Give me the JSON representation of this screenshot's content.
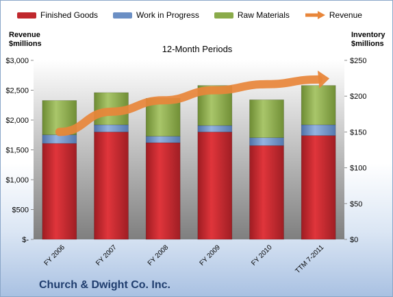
{
  "chart_data": {
    "type": "bar",
    "subtitle": "12-Month Periods",
    "company": "Church & Dwight Co. Inc.",
    "left_axis_label": "Revenue\n$millions",
    "right_axis_label": "Inventory\n$millions",
    "categories": [
      "FY 2006",
      "FY 2007",
      "FY 2008",
      "FY 2009",
      "FY 2010",
      "TTM 7-2011"
    ],
    "left_ticks": [
      "$-",
      "$500",
      "$1,000",
      "$1,500",
      "$2,000",
      "$2,500",
      "$3,000"
    ],
    "right_ticks": [
      "$0",
      "$50",
      "$100",
      "$150",
      "$200",
      "$250"
    ],
    "ylim_left": [
      0,
      3000
    ],
    "ylim_right": [
      0,
      250
    ],
    "series": [
      {
        "name": "Finished Goods",
        "color": "#c0282d",
        "values": [
          134,
          150,
          135,
          150,
          131,
          145
        ]
      },
      {
        "name": "Work in Progress",
        "color": "#6b8fc4",
        "values": [
          12,
          10,
          9,
          9,
          11,
          15
        ]
      },
      {
        "name": "Raw Materials",
        "color": "#8aab4a",
        "values": [
          48,
          45,
          53,
          56,
          53,
          55
        ]
      }
    ],
    "line_series": {
      "name": "Revenue",
      "color": "#e8863a",
      "values": [
        1800,
        2140,
        2330,
        2500,
        2600,
        2680
      ]
    },
    "grid": false,
    "legend": "top"
  }
}
